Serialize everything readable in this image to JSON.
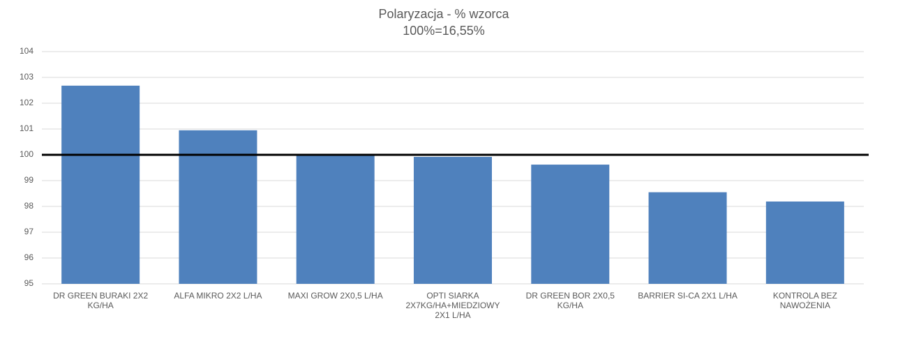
{
  "chart_data": {
    "type": "bar",
    "title": "Polaryzacja - % wzorca",
    "subtitle": "100%=16,55%",
    "categories": [
      "DR GREEN BURAKI 2X2 KG/HA",
      "ALFA MIKRO 2X2 L/HA",
      "MAXI GROW 2X0,5 L/HA",
      "OPTI SIARKA 2X7KG/HA+MIEDZIOWY 2X1 L/HA",
      "DR GREEN BOR 2X0,5 KG/HA",
      "BARRIER SI-CA 2X1 L/HA",
      "KONTROLA BEZ NAWOŻENIA"
    ],
    "values": [
      102.68,
      100.95,
      100.0,
      99.92,
      99.62,
      98.55,
      98.19
    ],
    "color": "#4f81bd",
    "ylim": [
      95,
      104
    ],
    "yticks": [
      95,
      96,
      97,
      98,
      99,
      100,
      101,
      102,
      103,
      104
    ],
    "grid": true,
    "reference_line": 100
  }
}
